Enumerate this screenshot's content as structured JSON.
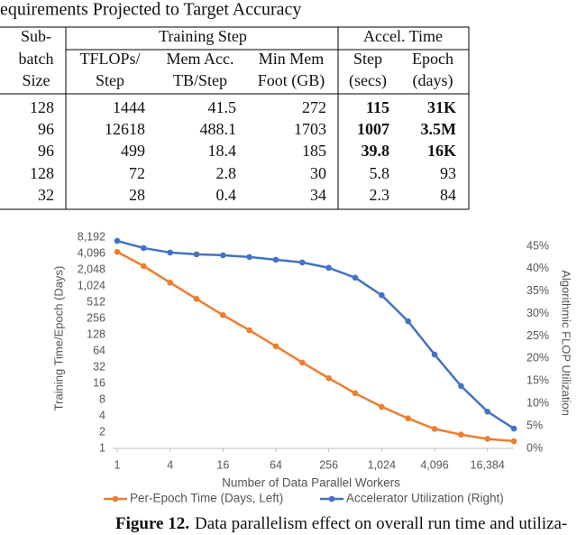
{
  "header": {
    "title": "equirements Projected to Target Accuracy"
  },
  "table": {
    "groups": [
      "Training Step",
      "Accel. Time"
    ],
    "columns": [
      [
        "Sub-",
        "batch",
        "Size"
      ],
      [
        "TFLOPs/",
        "Step"
      ],
      [
        "Mem Acc.",
        "TB/Step"
      ],
      [
        "Min Mem",
        "Foot (GB)"
      ],
      [
        "Step",
        "(secs)"
      ],
      [
        "Epoch",
        "(days)"
      ]
    ],
    "rows": [
      [
        "128",
        "1444",
        "41.5",
        "272",
        "115",
        "31K"
      ],
      [
        "96",
        "12618",
        "488.1",
        "1703",
        "1007",
        "3.5M"
      ],
      [
        "96",
        "499",
        "18.4",
        "185",
        "39.8",
        "16K"
      ],
      [
        "128",
        "72",
        "2.8",
        "30",
        "5.8",
        "93"
      ],
      [
        "32",
        "28",
        "0.4",
        "34",
        "2.3",
        "84"
      ]
    ],
    "bold_rows": [
      0,
      1,
      2
    ],
    "bold_columns": [
      4,
      5
    ]
  },
  "chart_data": {
    "type": "line",
    "x_label": "Number of Data Parallel Workers",
    "y_label": "Training Time/Epoch (Days)",
    "y2_label": "Algorithmic FLOP Utilization",
    "x": [
      1,
      2,
      4,
      8,
      16,
      32,
      64,
      128,
      256,
      512,
      1024,
      2048,
      4096,
      8192,
      16384,
      32768
    ],
    "xscale": "log",
    "yscale": "log",
    "xlim": [
      1,
      32768
    ],
    "xticks": [
      1,
      4,
      16,
      64,
      256,
      {
        "value": 1024,
        "label": "1,024"
      },
      {
        "value": 4096,
        "label": "4,096"
      },
      {
        "value": 16384,
        "label": "16,384"
      }
    ],
    "ylim": [
      1,
      8192
    ],
    "yticks": [
      1,
      2,
      4,
      8,
      16,
      32,
      64,
      128,
      256,
      512,
      {
        "value": 1024,
        "label": "1,024"
      },
      {
        "value": 2048,
        "label": "2,048"
      },
      {
        "value": 4096,
        "label": "4,096"
      },
      {
        "value": 8192,
        "label": "8,192"
      }
    ],
    "y2lim": [
      0,
      47
    ],
    "y2ticks": [
      {
        "value": 0,
        "label": "0%"
      },
      {
        "value": 5,
        "label": "5%"
      },
      {
        "value": 10,
        "label": "10%"
      },
      {
        "value": 15,
        "label": "15%"
      },
      {
        "value": 20,
        "label": "20%"
      },
      {
        "value": 25,
        "label": "25%"
      },
      {
        "value": 30,
        "label": "30%"
      },
      {
        "value": 35,
        "label": "35%"
      },
      {
        "value": 40,
        "label": "40%"
      },
      {
        "value": 45,
        "label": "45%"
      }
    ],
    "grid": false,
    "legend": "bottom",
    "series": [
      {
        "name": "Per-Epoch Time (Days, Left)",
        "color": "#ed7d31",
        "values": [
          4400,
          2400,
          1180,
          590,
          295,
          155,
          78,
          39,
          20,
          10.5,
          5.9,
          3.6,
          2.3,
          1.8,
          1.5,
          1.36
        ]
      },
      {
        "name": "Accelerator Utilization (Right)",
        "color": "#4472c4",
        "axis": "y2",
        "values": [
          46.2,
          44.6,
          43.6,
          43.2,
          43.0,
          42.6,
          42.0,
          41.4,
          40.2,
          38.0,
          34.1,
          28.3,
          20.9,
          13.9,
          8.2,
          4.4
        ]
      }
    ]
  },
  "caption": {
    "label": "Figure 12.",
    "text": "Data parallelism effect on overall run time and utiliza-"
  }
}
